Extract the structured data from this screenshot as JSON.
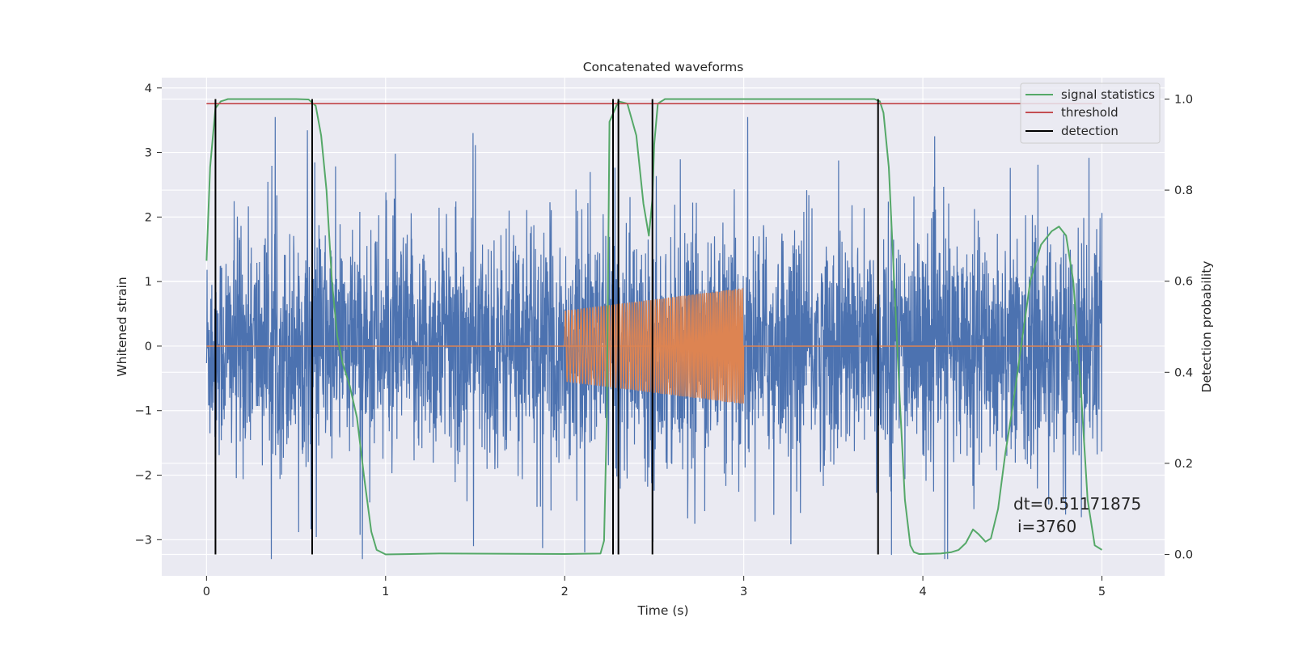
{
  "chart_data": {
    "type": "line",
    "title": "Concatenated waveforms",
    "xlabel": "Time (s)",
    "ylabel": "Whitened strain",
    "y2label": "Detection probability",
    "xlim": [
      -0.25,
      5.35
    ],
    "ylim": [
      -3.56,
      4.16
    ],
    "y2lim": [
      -0.047,
      1.047
    ],
    "xticks": [
      0,
      1,
      2,
      3,
      4,
      5
    ],
    "yticks": [
      -3,
      -2,
      -1,
      0,
      1,
      2,
      3,
      4
    ],
    "y2ticks": [
      0.0,
      0.2,
      0.4,
      0.6,
      0.8,
      1.0
    ],
    "grid": true,
    "legend_position": "top-right",
    "colors": {
      "background": "#eaeaf2",
      "grid": "#ffffff",
      "strain": "#4c72b0",
      "injection": "#dd8452",
      "signal_statistics": "#55a868",
      "threshold": "#c44e52",
      "detection": "#000000"
    },
    "series": [
      {
        "role": "strain",
        "axis": "left",
        "style": "noise",
        "x_range": [
          0,
          5
        ],
        "amplitude_envelope": 3.6
      },
      {
        "role": "injection",
        "axis": "left",
        "style": "chirp",
        "x_range": [
          2,
          3
        ],
        "amplitude_start": 0.55,
        "amplitude_end": 0.9,
        "baseline": 0.0
      },
      {
        "name": "signal statistics",
        "axis": "right",
        "style": "line",
        "x": [
          0.0,
          0.02,
          0.05,
          0.08,
          0.12,
          0.2,
          0.5,
          0.57,
          0.61,
          0.64,
          0.67,
          0.7,
          0.73,
          0.76,
          0.8,
          0.84,
          0.88,
          0.92,
          0.95,
          1.0,
          1.3,
          2.0,
          2.2,
          2.22,
          2.235,
          2.25,
          2.3,
          2.35,
          2.4,
          2.44,
          2.47,
          2.49,
          2.5,
          2.52,
          2.56,
          2.6,
          3.0,
          3.73,
          3.76,
          3.78,
          3.81,
          3.84,
          3.87,
          3.9,
          3.93,
          3.95,
          3.98,
          4.1,
          4.16,
          4.2,
          4.24,
          4.28,
          4.31,
          4.35,
          4.38,
          4.42,
          4.46,
          4.5,
          4.55,
          4.6,
          4.66,
          4.72,
          4.76,
          4.8,
          4.84,
          4.88,
          4.92,
          4.96,
          5.0
        ],
        "y": [
          0.645,
          0.85,
          0.98,
          0.995,
          1.0,
          1.0,
          1.0,
          0.999,
          0.985,
          0.92,
          0.8,
          0.6,
          0.48,
          0.42,
          0.37,
          0.3,
          0.17,
          0.05,
          0.01,
          0.0,
          0.002,
          0.001,
          0.002,
          0.03,
          0.3,
          0.95,
          0.995,
          0.99,
          0.92,
          0.77,
          0.7,
          0.78,
          0.9,
          0.99,
          1.0,
          1.0,
          1.0,
          1.0,
          0.995,
          0.97,
          0.85,
          0.6,
          0.35,
          0.12,
          0.02,
          0.005,
          0.001,
          0.002,
          0.005,
          0.01,
          0.025,
          0.055,
          0.045,
          0.028,
          0.035,
          0.1,
          0.22,
          0.32,
          0.46,
          0.6,
          0.68,
          0.71,
          0.72,
          0.7,
          0.6,
          0.38,
          0.12,
          0.02,
          0.01
        ]
      },
      {
        "name": "threshold",
        "axis": "right",
        "style": "line",
        "x": [
          0,
          5
        ],
        "y": [
          0.99,
          0.99
        ]
      },
      {
        "name": "detection",
        "axis": "right",
        "style": "vlines",
        "x": [
          0.05,
          0.59,
          2.27,
          2.3,
          2.49,
          3.75
        ],
        "ymin": 0.0,
        "ymax": 1.0
      }
    ],
    "annotation": [
      "dt=0.51171875",
      "i=3760"
    ]
  }
}
